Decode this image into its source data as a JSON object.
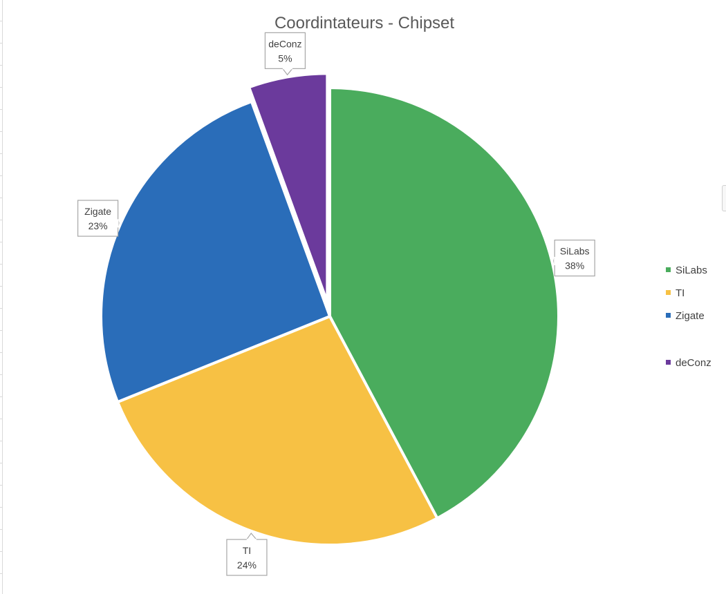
{
  "chart_data": {
    "type": "pie",
    "title": "Coordintateurs - Chipset",
    "categories": [
      "SiLabs",
      "TI",
      "Zigate",
      "deConz"
    ],
    "values": [
      38,
      24,
      23,
      5
    ],
    "data_labels": [
      "38%",
      "24%",
      "23%",
      "5%"
    ],
    "exploded": [
      false,
      false,
      false,
      true
    ],
    "colors": [
      "#4aac5d",
      "#f7c144",
      "#2a6db9",
      "#6b3a9c"
    ],
    "legend": {
      "position": "right",
      "entries": [
        "SiLabs",
        "TI",
        "Zigate",
        "deConz"
      ]
    }
  }
}
